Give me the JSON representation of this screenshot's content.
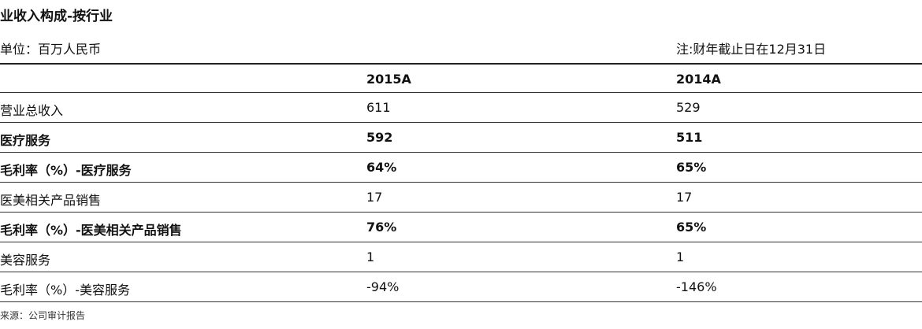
{
  "header": {
    "title": "业收入构成-按行业",
    "unit": "单位：百万人民币",
    "note": "注:财年截止日在12月31日"
  },
  "table": {
    "columns": [
      "2015A",
      "2014A"
    ],
    "rows": [
      {
        "label": "营业总收入",
        "cells": [
          "611",
          "529"
        ],
        "bold": false
      },
      {
        "label": "医疗服务",
        "cells": [
          "592",
          "511"
        ],
        "bold": true
      },
      {
        "label": "毛利率（%）-医疗服务",
        "cells": [
          "64%",
          "65%"
        ],
        "bold": true
      },
      {
        "label": "医美相关产品销售",
        "cells": [
          "17",
          "17"
        ],
        "bold": false
      },
      {
        "label": "毛利率（%）-医美相关产品销售",
        "cells": [
          "76%",
          "65%"
        ],
        "bold": true
      },
      {
        "label": "美容服务",
        "cells": [
          "1",
          "1"
        ],
        "bold": false
      },
      {
        "label": "毛利率（%）-美容服务",
        "cells": [
          "-94%",
          "-146%"
        ],
        "bold": false
      }
    ]
  },
  "footer": {
    "source": "来源：公司审计报告"
  }
}
